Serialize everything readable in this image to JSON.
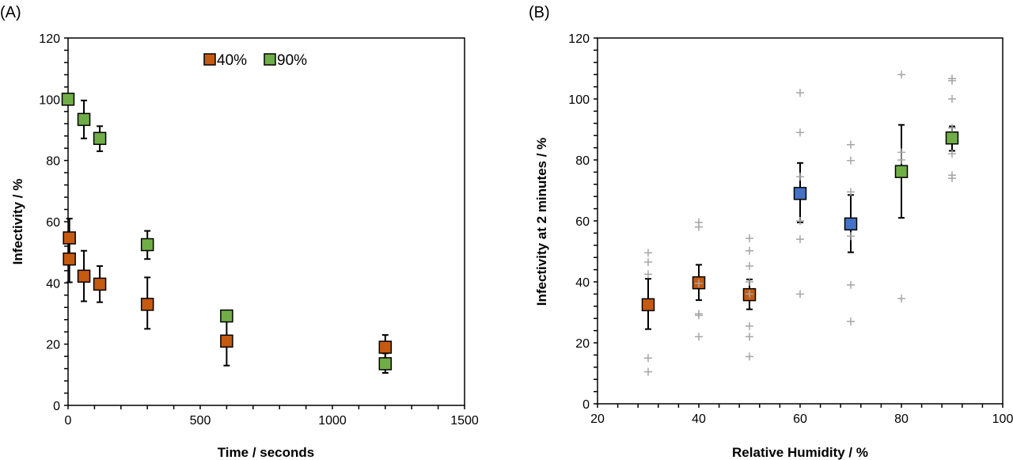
{
  "chart_data": [
    {
      "type": "scatter",
      "panel_label": "(A)",
      "xlabel": "Time / seconds",
      "ylabel": "Infectivity / %",
      "xlim": [
        0,
        1500
      ],
      "ylim": [
        0,
        120
      ],
      "xticks": [
        0,
        500,
        1000,
        1500
      ],
      "yticks": [
        0,
        20,
        40,
        60,
        80,
        100,
        120
      ],
      "grid": false,
      "legend": "top-center",
      "series": [
        {
          "name": "40%",
          "color": "#C55A11",
          "points": [
            {
              "x": 5,
              "y": 54.7,
              "err": [
                48,
                61
              ]
            },
            {
              "x": 5,
              "y": 47.8,
              "err": [
                40.2,
                55
              ]
            },
            {
              "x": 60,
              "y": 42.2,
              "err": [
                34,
                50.5
              ]
            },
            {
              "x": 120,
              "y": 39.6,
              "err": [
                33.7,
                45.5
              ]
            },
            {
              "x": 300,
              "y": 33,
              "err": [
                25,
                41.8
              ]
            },
            {
              "x": 600,
              "y": 21,
              "err": [
                13,
                29
              ]
            },
            {
              "x": 1200,
              "y": 19,
              "err": [
                15,
                23
              ]
            }
          ]
        },
        {
          "name": "90%",
          "color": "#70AD47",
          "points": [
            {
              "x": 0,
              "y": 100,
              "err": [
                100,
                100
              ]
            },
            {
              "x": 60,
              "y": 93.4,
              "err": [
                87.2,
                99.6
              ]
            },
            {
              "x": 120,
              "y": 87.2,
              "err": [
                83,
                91.2
              ]
            },
            {
              "x": 300,
              "y": 52.5,
              "err": [
                47.8,
                57
              ]
            },
            {
              "x": 600,
              "y": 29.2,
              "err": [
                29.2,
                29.2
              ]
            },
            {
              "x": 1200,
              "y": 13.6,
              "err": [
                10.6,
                17
              ]
            }
          ]
        }
      ]
    },
    {
      "type": "scatter",
      "panel_label": "(B)",
      "xlabel": "Relative Humidity / %",
      "ylabel": "Infectivity at 2 minutes / %",
      "xlim": [
        20,
        100
      ],
      "ylim": [
        0,
        120
      ],
      "xticks": [
        20,
        40,
        60,
        80,
        100
      ],
      "yticks": [
        0,
        20,
        40,
        60,
        80,
        100,
        120
      ],
      "grid": false,
      "means": [
        {
          "x": 30,
          "y": 32.5,
          "err": [
            24.5,
            41
          ],
          "color": "#C55A11"
        },
        {
          "x": 40,
          "y": 39.7,
          "err": [
            34,
            45.6
          ],
          "color": "#C55A11"
        },
        {
          "x": 50,
          "y": 35.8,
          "err": [
            31,
            40.8
          ],
          "color": "#C55A11"
        },
        {
          "x": 60,
          "y": 69,
          "err": [
            59.5,
            79
          ],
          "color": "#4472C4"
        },
        {
          "x": 70,
          "y": 59,
          "err": [
            49.7,
            68.5
          ],
          "color": "#4472C4"
        },
        {
          "x": 80,
          "y": 76.2,
          "err": [
            61,
            91.5
          ],
          "color": "#70AD47"
        },
        {
          "x": 90,
          "y": 87.2,
          "err": [
            83,
            91
          ],
          "color": "#70AD47"
        }
      ],
      "replicates": {
        "color": "#A6A6A6",
        "points": [
          {
            "x": 30,
            "values": [
              49.5,
              46.5,
              42.5,
              15,
              10.5
            ]
          },
          {
            "x": 40,
            "values": [
              59.5,
              58,
              39.5,
              29.5,
              29,
              22
            ]
          },
          {
            "x": 50,
            "values": [
              54.3,
              50.2,
              45.2,
              40,
              36,
              25.5,
              22,
              15.5
            ]
          },
          {
            "x": 60,
            "values": [
              102,
              89,
              74.5,
              60,
              54,
              36
            ]
          },
          {
            "x": 70,
            "values": [
              85,
              79.8,
              69.5,
              55,
              39,
              27
            ]
          },
          {
            "x": 80,
            "values": [
              108,
              82.5,
              80,
              34.5
            ]
          },
          {
            "x": 90,
            "values": [
              106.7,
              106,
              100,
              90.5,
              82,
              75,
              74
            ]
          }
        ]
      }
    }
  ]
}
